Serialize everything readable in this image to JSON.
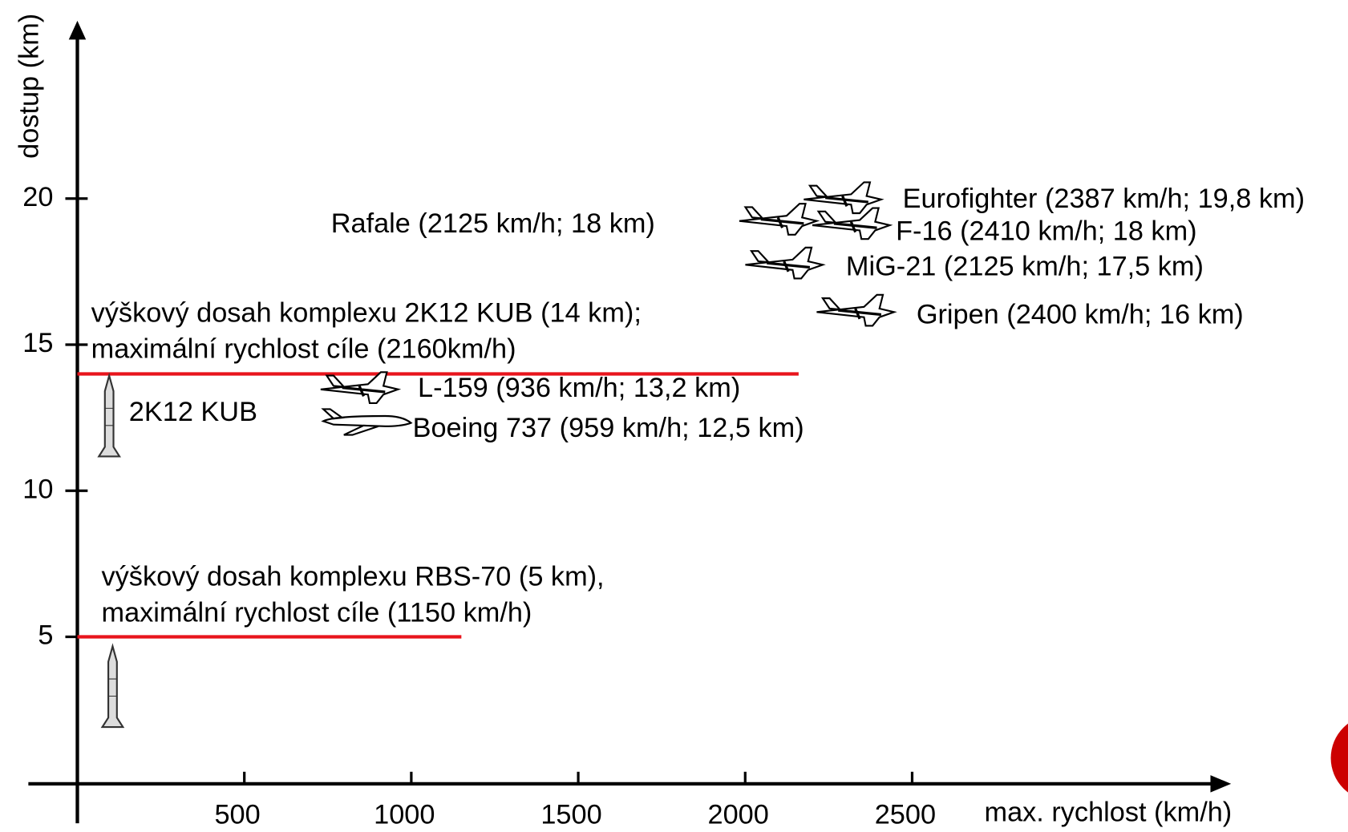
{
  "chart_data": {
    "type": "annotated-axes",
    "x_label": "max. rychlost (km/h)",
    "y_label": "dostup (km)",
    "xlim": [
      0,
      3450
    ],
    "ylim": [
      0,
      26
    ],
    "xticks": [
      500,
      1000,
      1500,
      2000,
      2500
    ],
    "yticks": [
      5,
      10,
      15,
      20
    ],
    "limits": [
      {
        "lines": [
          "výškový dosah komplexu 2K12 KUB (14 km);",
          "maximální rychlost cíle (2160km/h)"
        ],
        "speed": 2160,
        "altitude": 14,
        "color": "#e8141c"
      },
      {
        "lines": [
          "výškový dosah komplexu RBS-70 (5 km),",
          "maximální rychlost cíle (1150 km/h)"
        ],
        "speed": 1150,
        "altitude": 5,
        "color": "#e8141c"
      }
    ],
    "launcher_label": "2K12 KUB",
    "aircraft": [
      {
        "label": "Eurofighter (2387 km/h; 19,8 km)"
      },
      {
        "label": "F-16 (2410 km/h; 18 km)"
      },
      {
        "label": "Rafale (2125 km/h; 18 km)"
      },
      {
        "label": "MiG-21 (2125 km/h; 17,5 km)"
      },
      {
        "label": "Gripen (2400 km/h; 16 km)"
      },
      {
        "label": "L-159 (936 km/h; 13,2 km)"
      },
      {
        "label": "Boeing 737 (959 km/h; 12,5 km)"
      }
    ]
  }
}
